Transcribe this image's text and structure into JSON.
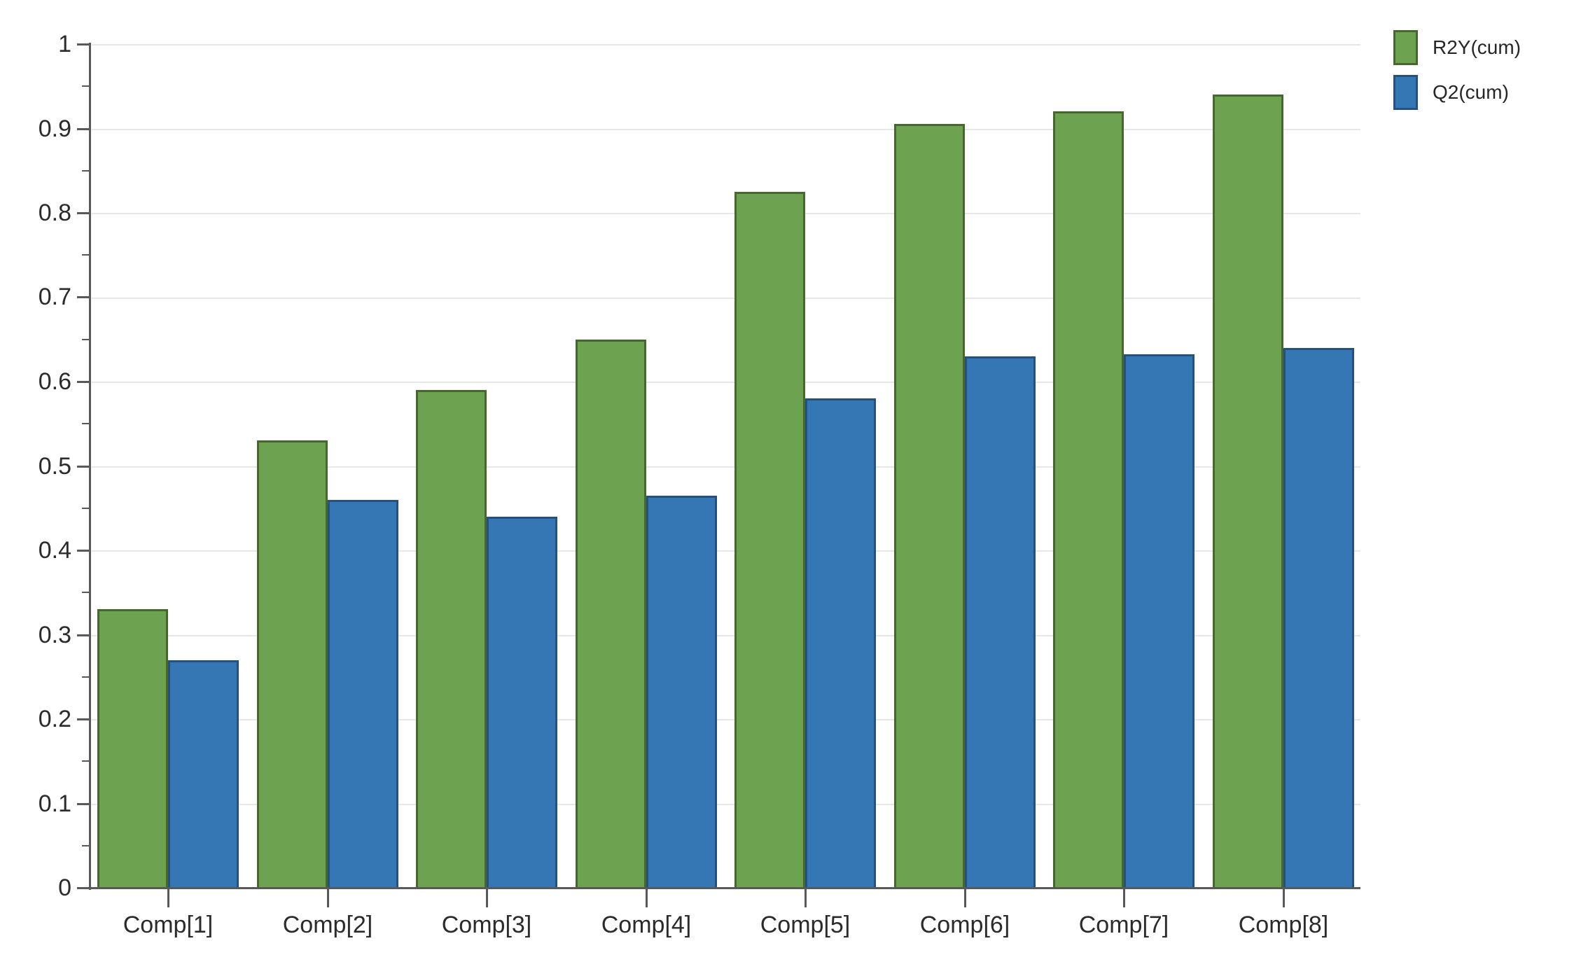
{
  "chart_data": {
    "type": "bar",
    "title": "",
    "xlabel": "",
    "ylabel": "",
    "categories": [
      "Comp[1]",
      "Comp[2]",
      "Comp[3]",
      "Comp[4]",
      "Comp[5]",
      "Comp[6]",
      "Comp[7]",
      "Comp[8]"
    ],
    "series": [
      {
        "name": "R2Y(cum)",
        "color": "#6CA250",
        "border_color": "#46682F",
        "values": [
          0.33,
          0.53,
          0.59,
          0.65,
          0.825,
          0.905,
          0.92,
          0.94
        ]
      },
      {
        "name": "Q2(cum)",
        "color": "#3577B5",
        "border_color": "#24517D",
        "values": [
          0.27,
          0.46,
          0.44,
          0.465,
          0.58,
          0.63,
          0.632,
          0.64
        ]
      }
    ],
    "ylim": [
      0,
      1
    ],
    "y_tick_labels": [
      "0",
      "0.1",
      "0.2",
      "0.3",
      "0.4",
      "0.5",
      "0.6",
      "0.7",
      "0.8",
      "0.9",
      "1"
    ],
    "y_major_step": 0.1,
    "y_minor_step": 0.05,
    "grid": "horizontal-major",
    "legend_position": "top-right"
  },
  "colors": {
    "background": "#FFFFFF",
    "axis": "#595959",
    "gridline": "#E7E7E7",
    "tick_text": "#2B2B2B",
    "legend_text": "#262626"
  }
}
